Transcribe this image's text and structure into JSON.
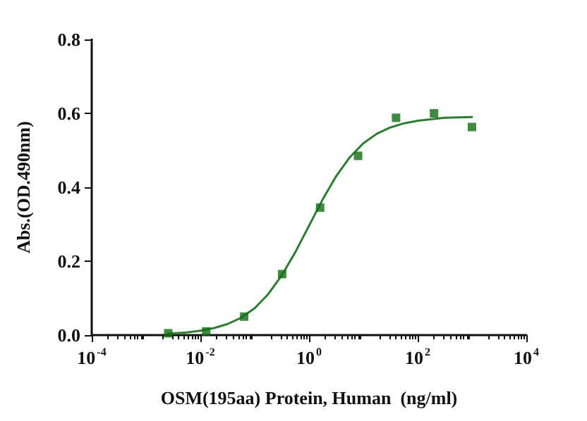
{
  "chart_data": {
    "type": "scatter",
    "xlabel": "OSM(195aa) Protein, Human  (ng/ml)",
    "ylabel": "Abs.(OD.490nm)",
    "log": "x",
    "grid": false,
    "xlim": [
      0.0001,
      10000
    ],
    "xticks": [
      {
        "value": 0.0001,
        "label": "10$^{-4}$"
      },
      {
        "value": 0.01,
        "label": "10$^{-2}$"
      },
      {
        "value": 1,
        "label": "10$^{0}$"
      },
      {
        "value": 100,
        "label": "10$^{2}$"
      },
      {
        "value": 10000,
        "label": "10$^{4}$"
      }
    ],
    "ylim": [
      0,
      0.8
    ],
    "yticks": [
      {
        "value": 0,
        "label": "0.0"
      },
      {
        "value": 0.2,
        "label": "0.2"
      },
      {
        "value": 0.4,
        "label": "0.4"
      },
      {
        "value": 0.6,
        "label": "0.6"
      },
      {
        "value": 0.8,
        "label": "0.8"
      }
    ],
    "series": [
      {
        "marker": "square",
        "color": "#136b13",
        "x": [
          0.00256,
          0.0128,
          0.064,
          0.32,
          1.6,
          8,
          40,
          200,
          1000
        ],
        "values": [
          0.005,
          0.01,
          0.05,
          0.165,
          0.345,
          0.485,
          0.588,
          0.6,
          0.563
        ]
      },
      {
        "type": "line",
        "marker": "none",
        "line_style": "solid",
        "color": "#2e7d32",
        "x": [
          0.0025,
          0.0056,
          0.01,
          0.0178,
          0.0316,
          0.0562,
          0.1,
          0.178,
          0.316,
          0.562,
          1,
          1.78,
          3.16,
          5.62,
          10,
          17.8,
          31.6,
          56.2,
          100,
          316,
          1000
        ],
        "values": [
          0.004,
          0.007,
          0.012,
          0.019,
          0.03,
          0.047,
          0.073,
          0.111,
          0.162,
          0.225,
          0.296,
          0.367,
          0.43,
          0.481,
          0.519,
          0.545,
          0.562,
          0.573,
          0.58,
          0.588,
          0.59
        ]
      }
    ]
  }
}
